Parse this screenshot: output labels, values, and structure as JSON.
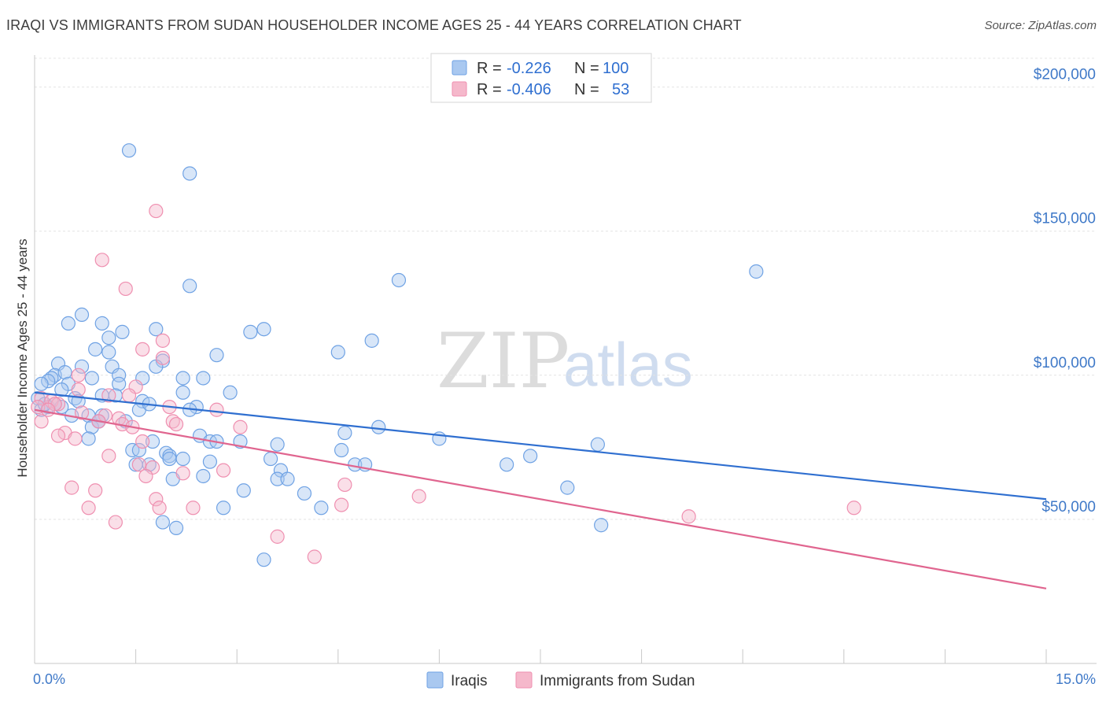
{
  "title": "IRAQI VS IMMIGRANTS FROM SUDAN HOUSEHOLDER INCOME AGES 25 - 44 YEARS CORRELATION CHART",
  "source": "Source: ZipAtlas.com",
  "watermark": {
    "zip": "ZIP",
    "atlas": "atlas"
  },
  "legend": {
    "rows": [
      {
        "r_label": "R =",
        "r_value": "-0.226",
        "n_label": "N =",
        "n_value": "100",
        "color": "#a9c8f0"
      },
      {
        "r_label": "R =",
        "r_value": "-0.406",
        "n_label": "N =",
        "n_value": "53",
        "color": "#f5b8cb"
      }
    ]
  },
  "chart_data": {
    "type": "scatter",
    "title": "IRAQI VS IMMIGRANTS FROM SUDAN HOUSEHOLDER INCOME AGES 25 - 44 YEARS CORRELATION CHART",
    "xlabel": "",
    "ylabel": "Householder Income Ages 25 - 44 years",
    "xlim": [
      0,
      15
    ],
    "ylim": [
      0,
      210000
    ],
    "x_tick_labels": [
      "0.0%",
      "15.0%"
    ],
    "y_ticks": [
      50000,
      100000,
      150000,
      200000
    ],
    "y_tick_labels": [
      "$50,000",
      "$100,000",
      "$150,000",
      "$200,000"
    ],
    "grid": true,
    "legend_position": "top-center",
    "series": [
      {
        "name": "Iraqis",
        "color": "#6fa2e4",
        "fill": "#a9c8f0",
        "line_color": "#2f6fd0",
        "trend": {
          "x": [
            0,
            15
          ],
          "y": [
            94000,
            57000
          ]
        },
        "points": [
          [
            1.4,
            178000
          ],
          [
            2.3,
            170000
          ],
          [
            2.3,
            131000
          ],
          [
            5.4,
            133000
          ],
          [
            10.7,
            136000
          ],
          [
            0.5,
            118000
          ],
          [
            0.7,
            121000
          ],
          [
            1.0,
            118000
          ],
          [
            1.1,
            113000
          ],
          [
            1.3,
            115000
          ],
          [
            1.8,
            116000
          ],
          [
            3.2,
            115000
          ],
          [
            3.4,
            116000
          ],
          [
            5.0,
            112000
          ],
          [
            4.5,
            108000
          ],
          [
            0.9,
            109000
          ],
          [
            1.1,
            108000
          ],
          [
            2.7,
            107000
          ],
          [
            1.9,
            105000
          ],
          [
            0.35,
            104000
          ],
          [
            0.7,
            103000
          ],
          [
            1.15,
            103000
          ],
          [
            1.8,
            103000
          ],
          [
            0.3,
            100000
          ],
          [
            0.45,
            101000
          ],
          [
            0.25,
            99000
          ],
          [
            0.85,
            99000
          ],
          [
            1.25,
            100000
          ],
          [
            1.6,
            99000
          ],
          [
            2.2,
            99000
          ],
          [
            2.5,
            99000
          ],
          [
            0.2,
            98000
          ],
          [
            0.5,
            97000
          ],
          [
            1.25,
            97000
          ],
          [
            0.1,
            97000
          ],
          [
            0.4,
            95000
          ],
          [
            2.2,
            94000
          ],
          [
            2.9,
            94000
          ],
          [
            0.05,
            92000
          ],
          [
            0.6,
            92000
          ],
          [
            1.0,
            93000
          ],
          [
            1.2,
            93000
          ],
          [
            0.65,
            91000
          ],
          [
            1.6,
            91000
          ],
          [
            2.4,
            89000
          ],
          [
            0.2,
            89000
          ],
          [
            0.1,
            88000
          ],
          [
            1.55,
            88000
          ],
          [
            2.3,
            88000
          ],
          [
            0.55,
            86000
          ],
          [
            1.0,
            86000
          ],
          [
            0.8,
            86000
          ],
          [
            0.95,
            84000
          ],
          [
            1.35,
            84000
          ],
          [
            0.85,
            82000
          ],
          [
            5.1,
            82000
          ],
          [
            4.6,
            80000
          ],
          [
            2.45,
            79000
          ],
          [
            6.0,
            78000
          ],
          [
            0.8,
            78000
          ],
          [
            2.6,
            77000
          ],
          [
            2.7,
            77000
          ],
          [
            1.75,
            77000
          ],
          [
            3.05,
            77000
          ],
          [
            3.6,
            76000
          ],
          [
            8.35,
            76000
          ],
          [
            4.55,
            74000
          ],
          [
            1.45,
            74000
          ],
          [
            1.55,
            74000
          ],
          [
            1.95,
            73000
          ],
          [
            2.0,
            72000
          ],
          [
            7.35,
            72000
          ],
          [
            2.2,
            71000
          ],
          [
            3.5,
            71000
          ],
          [
            1.5,
            69000
          ],
          [
            1.7,
            69000
          ],
          [
            2.6,
            70000
          ],
          [
            4.75,
            69000
          ],
          [
            4.9,
            69000
          ],
          [
            7.0,
            69000
          ],
          [
            3.65,
            67000
          ],
          [
            2.5,
            65000
          ],
          [
            3.6,
            64000
          ],
          [
            3.75,
            64000
          ],
          [
            2.05,
            64000
          ],
          [
            3.1,
            60000
          ],
          [
            7.9,
            61000
          ],
          [
            4.0,
            59000
          ],
          [
            2.8,
            54000
          ],
          [
            4.25,
            54000
          ],
          [
            1.9,
            49000
          ],
          [
            2.1,
            47000
          ],
          [
            8.4,
            48000
          ],
          [
            3.4,
            36000
          ],
          [
            0.3,
            90000
          ],
          [
            0.4,
            89000
          ],
          [
            0.15,
            90000
          ],
          [
            1.7,
            90000
          ],
          [
            2.0,
            71000
          ],
          [
            0.95,
            84000
          ]
        ]
      },
      {
        "name": "Immigrants from Sudan",
        "color": "#ef8fb0",
        "fill": "#f5b8cb",
        "line_color": "#e0658f",
        "trend": {
          "x": [
            0,
            15
          ],
          "y": [
            88000,
            26000
          ]
        },
        "points": [
          [
            1.8,
            157000
          ],
          [
            1.0,
            140000
          ],
          [
            1.35,
            130000
          ],
          [
            1.9,
            112000
          ],
          [
            1.6,
            109000
          ],
          [
            1.9,
            106000
          ],
          [
            0.65,
            100000
          ],
          [
            1.5,
            96000
          ],
          [
            0.1,
            92000
          ],
          [
            0.25,
            91000
          ],
          [
            0.35,
            90000
          ],
          [
            0.05,
            89000
          ],
          [
            0.65,
            95000
          ],
          [
            1.1,
            93000
          ],
          [
            1.4,
            93000
          ],
          [
            2.0,
            89000
          ],
          [
            2.7,
            88000
          ],
          [
            0.7,
            87000
          ],
          [
            1.05,
            86000
          ],
          [
            1.25,
            85000
          ],
          [
            0.95,
            84000
          ],
          [
            1.3,
            83000
          ],
          [
            1.45,
            82000
          ],
          [
            2.05,
            84000
          ],
          [
            2.1,
            83000
          ],
          [
            0.1,
            84000
          ],
          [
            3.05,
            82000
          ],
          [
            0.45,
            80000
          ],
          [
            0.35,
            79000
          ],
          [
            0.6,
            78000
          ],
          [
            1.6,
            77000
          ],
          [
            1.1,
            72000
          ],
          [
            1.55,
            69000
          ],
          [
            1.75,
            68000
          ],
          [
            2.2,
            66000
          ],
          [
            2.8,
            67000
          ],
          [
            1.65,
            65000
          ],
          [
            0.55,
            61000
          ],
          [
            0.9,
            60000
          ],
          [
            4.6,
            62000
          ],
          [
            5.7,
            58000
          ],
          [
            1.8,
            57000
          ],
          [
            2.35,
            54000
          ],
          [
            4.55,
            55000
          ],
          [
            0.8,
            54000
          ],
          [
            1.85,
            54000
          ],
          [
            12.15,
            54000
          ],
          [
            9.7,
            51000
          ],
          [
            1.2,
            49000
          ],
          [
            3.6,
            44000
          ],
          [
            4.15,
            37000
          ],
          [
            0.3,
            90000
          ],
          [
            0.2,
            88000
          ]
        ]
      }
    ]
  },
  "bottom_legend": [
    {
      "label": "Iraqis",
      "color": "#a9c8f0"
    },
    {
      "label": "Immigrants from Sudan",
      "color": "#f5b8cb"
    }
  ]
}
